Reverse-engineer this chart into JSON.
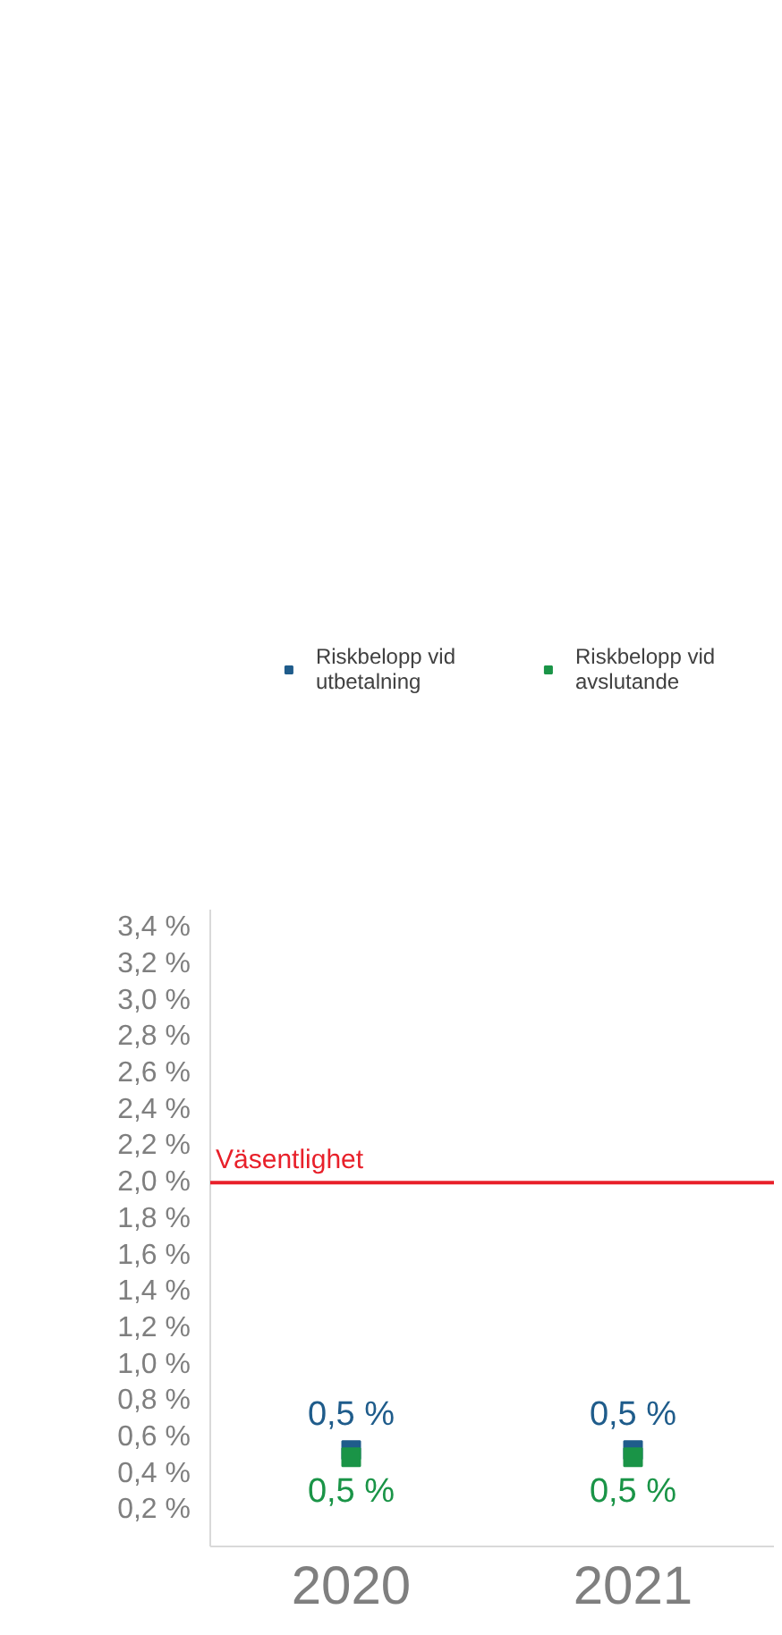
{
  "chart_data": {
    "type": "scatter",
    "categories": [
      "2020",
      "2021"
    ],
    "series": [
      {
        "name": "Riskbelopp vid utbetalning",
        "color": "#1f5c8b",
        "values": [
          0.53,
          0.53
        ],
        "value_labels": [
          "0,5 %",
          "0,5 %"
        ]
      },
      {
        "name": "Riskbelopp vid avslutande",
        "color": "#1a9447",
        "values": [
          0.49,
          0.49
        ],
        "value_labels": [
          "0,5 %",
          "0,5 %"
        ]
      }
    ],
    "marker": "square",
    "ylim": [
      0,
      3.5
    ],
    "yticks": [
      {
        "value": 0.2,
        "label": "0,2 %"
      },
      {
        "value": 0.4,
        "label": "0,4 %"
      },
      {
        "value": 0.6,
        "label": "0,6 %"
      },
      {
        "value": 0.8,
        "label": "0,8 %"
      },
      {
        "value": 1.0,
        "label": "1,0 %"
      },
      {
        "value": 1.2,
        "label": "1,2 %"
      },
      {
        "value": 1.4,
        "label": "1,4 %"
      },
      {
        "value": 1.6,
        "label": "1,6 %"
      },
      {
        "value": 1.8,
        "label": "1,8 %"
      },
      {
        "value": 2.0,
        "label": "2,0 %"
      },
      {
        "value": 2.2,
        "label": "2,2 %"
      },
      {
        "value": 2.4,
        "label": "2,4 %"
      },
      {
        "value": 2.6,
        "label": "2,6 %"
      },
      {
        "value": 2.8,
        "label": "2,8 %"
      },
      {
        "value": 3.0,
        "label": "3,0 %"
      },
      {
        "value": 3.2,
        "label": "3,2 %"
      },
      {
        "value": 3.4,
        "label": "3,4 %"
      }
    ],
    "ref_lines": [
      {
        "axis": "y",
        "value": 2.0,
        "label": "Väsentlighet",
        "color": "#e8202a"
      }
    ],
    "legend": "top",
    "grid": false
  }
}
